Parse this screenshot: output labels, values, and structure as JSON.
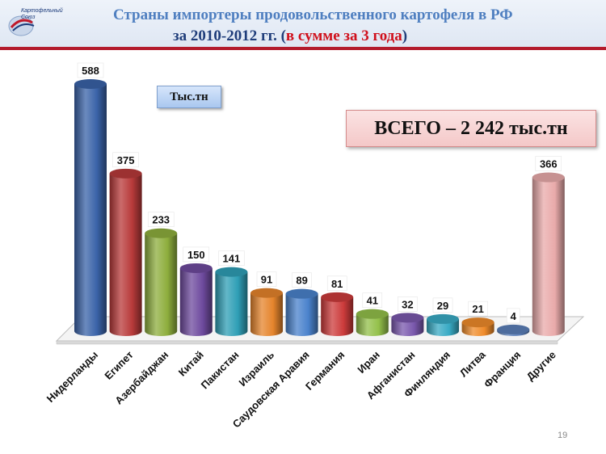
{
  "header": {
    "title_line1": "Страны импортеры продовольственного картофеля в РФ",
    "title_line2_prefix": "за 2010-2012 гг. (",
    "title_line2_accent": "в сумме за 3 года",
    "title_line2_suffix": ")",
    "logo_text": "Картофельный Союз"
  },
  "unit_label": "Тыс.тн",
  "total_label": "ВСЕГО – 2 242 тыс.тн",
  "page_number": "19",
  "chart_data": {
    "type": "bar",
    "categories": [
      "Нидерланды",
      "Египет",
      "Азербайджан",
      "Китай",
      "Пакистан",
      "Израиль",
      "Саудовская Аравия",
      "Германия",
      "Иран",
      "Афганистан",
      "Финляндия",
      "Литва",
      "Франция",
      "Другие"
    ],
    "values": [
      588,
      375,
      233,
      150,
      141,
      91,
      89,
      81,
      41,
      32,
      29,
      21,
      4,
      366
    ],
    "value_labels": [
      "588",
      "375",
      "233",
      "150",
      "141",
      "91",
      "89",
      "81",
      "41",
      "32",
      "29",
      "21",
      "4",
      "366"
    ],
    "colors": [
      "#3a63a8",
      "#b83a3a",
      "#8eae3d",
      "#6e4a9e",
      "#2f9fb6",
      "#e5842c",
      "#4a82cc",
      "#cc3b3b",
      "#93c04a",
      "#7a58ad",
      "#38aac4",
      "#ef8b2a",
      "#5b7fb9",
      "#e9aaaa"
    ],
    "ylim": [
      0,
      600
    ],
    "legend": "none",
    "grid": false
  }
}
